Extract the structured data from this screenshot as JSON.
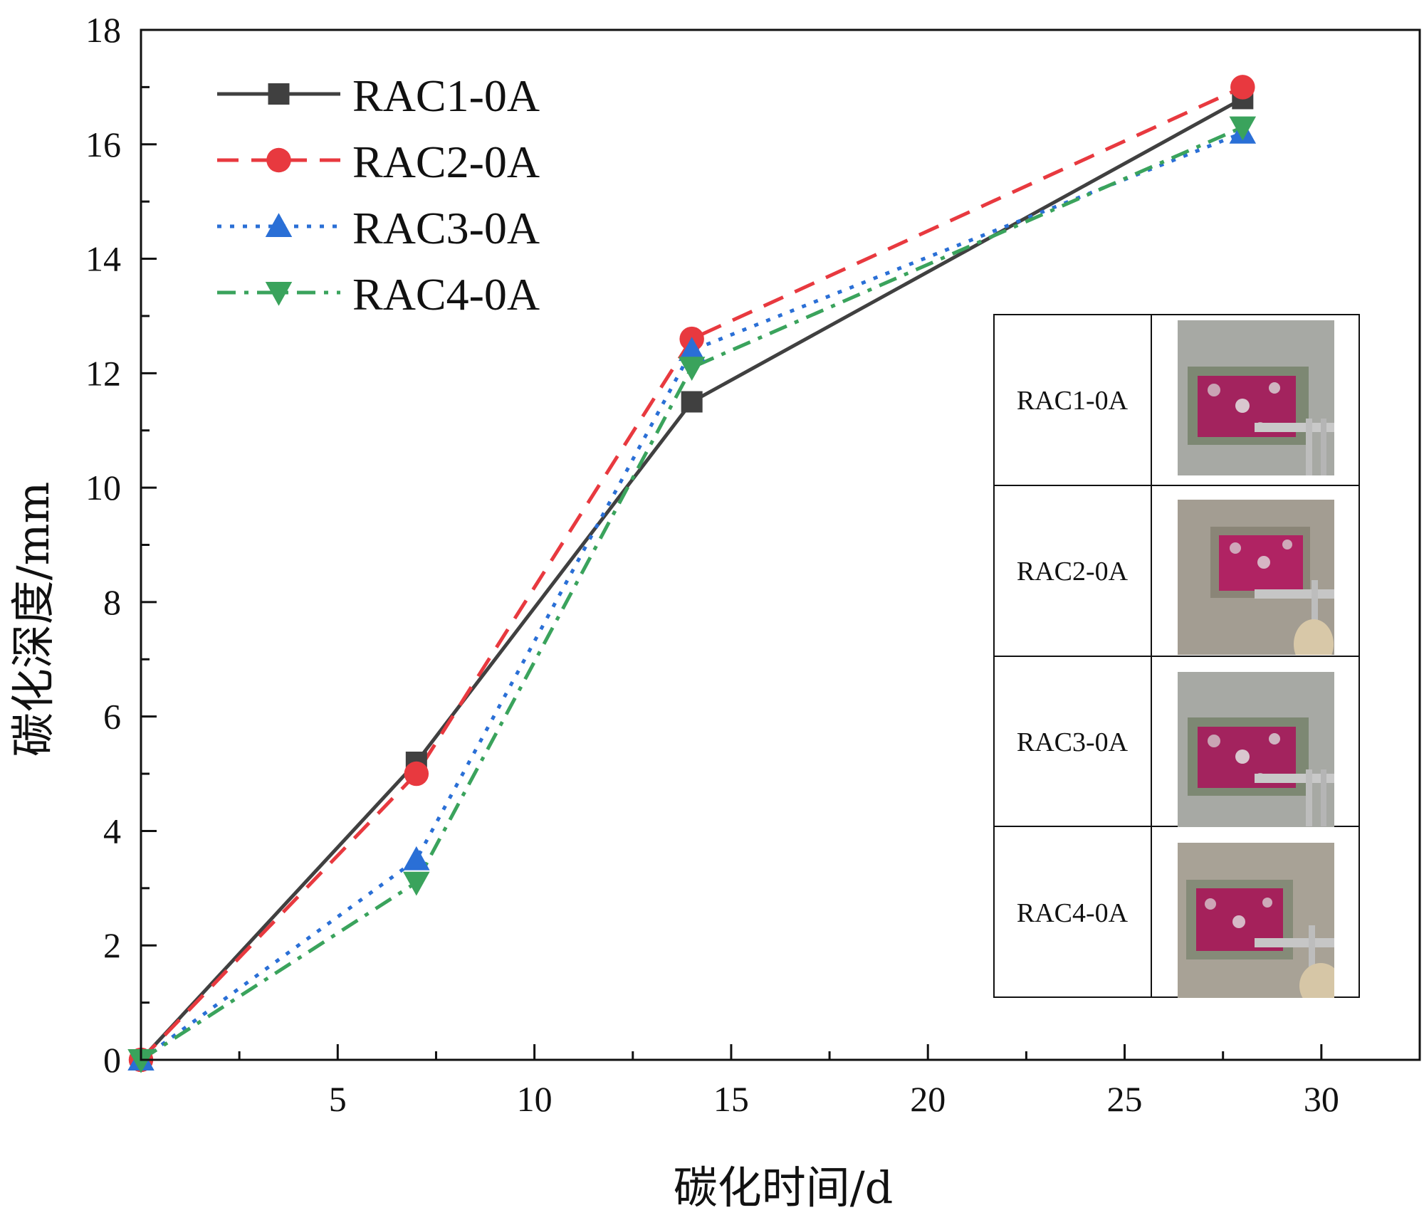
{
  "chart_data": {
    "type": "line",
    "title": "",
    "xlabel": "碳化时间/d",
    "ylabel": "碳化深度/mm",
    "xlim": [
      0,
      32.5
    ],
    "ylim": [
      0,
      18
    ],
    "x_ticks": [
      5,
      10,
      15,
      20,
      25,
      30
    ],
    "y_ticks": [
      0,
      2,
      4,
      6,
      8,
      10,
      12,
      14,
      16,
      18
    ],
    "grid": false,
    "legend_position": "top-left",
    "x": [
      0,
      7,
      14,
      28
    ],
    "series": [
      {
        "name": "RAC1-0A",
        "values": [
          0,
          5.2,
          11.5,
          16.8
        ],
        "color": "#404040",
        "marker": "square",
        "dash": "solid"
      },
      {
        "name": "RAC2-0A",
        "values": [
          0,
          5.0,
          12.6,
          17.0
        ],
        "color": "#e8393f",
        "marker": "circle",
        "dash": "dashed"
      },
      {
        "name": "RAC3-0A",
        "values": [
          0,
          3.5,
          12.4,
          16.2
        ],
        "color": "#2a6fd6",
        "marker": "triangle-up",
        "dash": "dotted"
      },
      {
        "name": "RAC4-0A",
        "values": [
          0,
          3.1,
          12.1,
          16.3
        ],
        "color": "#3aa35c",
        "marker": "triangle-down",
        "dash": "dash-dot"
      }
    ],
    "inset": {
      "rows": [
        "RAC1-0A",
        "RAC2-0A",
        "RAC3-0A",
        "RAC4-0A"
      ],
      "photo_icon": "specimen-photo-with-caliper"
    }
  }
}
